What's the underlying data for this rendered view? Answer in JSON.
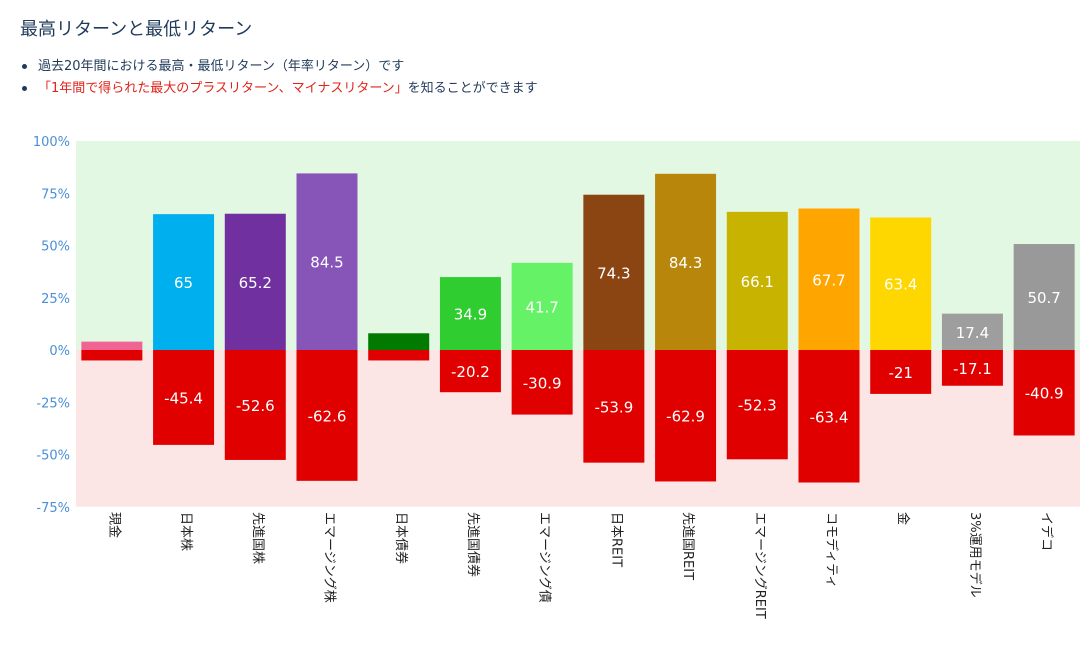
{
  "header": {
    "title": "最高リターンと最低リターン",
    "bullet1": "過去20年間における最高・最低リターン（年率リターン）です",
    "bullet2_red": "「1年間で得られた最大のプラスリターン、マイナスリターン」",
    "bullet2_rest": "を知ることができます"
  },
  "colors": {
    "positive_band": "#e3f8e3",
    "negative_band": "#fbe5e5",
    "negative_bar": "#e00000",
    "tick_label": "#4a8fd8"
  },
  "chart_data": {
    "type": "bar",
    "categories": [
      "現金",
      "日本株",
      "先進国株",
      "エマージング株",
      "日本債券",
      "先進国債券",
      "エマージング債",
      "日本REIT",
      "先進国REIT",
      "エマージングREIT",
      "コモディティ",
      "金",
      "3%運用モデル",
      "イデコ"
    ],
    "series": [
      {
        "values": [
          4,
          65,
          65.2,
          84.5,
          8,
          34.9,
          41.7,
          74.3,
          84.3,
          66.1,
          67.7,
          63.4,
          17.4,
          50.7
        ],
        "labels": [
          "",
          "65",
          "65.2",
          "84.5",
          "",
          "34.9",
          "41.7",
          "74.3",
          "84.3",
          "66.1",
          "67.7",
          "63.4",
          "17.4",
          "50.7"
        ],
        "colors": [
          "#f06493",
          "#00b0ee",
          "#7030a0",
          "#8755b8",
          "#007a00",
          "#2fcd2f",
          "#66f266",
          "#8b4513",
          "#b8860b",
          "#c8b400",
          "#ffa500",
          "#ffd700",
          "#9e9e9e",
          "#999999"
        ]
      },
      {
        "values": [
          -5,
          -45.4,
          -52.6,
          -62.6,
          -5,
          -20.2,
          -30.9,
          -53.9,
          -62.9,
          -52.3,
          -63.4,
          -21,
          -17.1,
          -40.9
        ],
        "labels": [
          "",
          "-45.4",
          "-52.6",
          "-62.6",
          "",
          "-20.2",
          "-30.9",
          "-53.9",
          "-62.9",
          "-52.3",
          "-63.4",
          "-21",
          "-17.1",
          "-40.9"
        ],
        "colors": [
          "#e00000",
          "#e00000",
          "#e00000",
          "#e00000",
          "#e00000",
          "#e00000",
          "#e00000",
          "#e00000",
          "#e00000",
          "#e00000",
          "#e00000",
          "#e00000",
          "#e00000",
          "#e00000"
        ]
      }
    ],
    "yticks": [
      "100%",
      "75%",
      "50%",
      "25%",
      "0%",
      "-25%",
      "-50%",
      "-75%"
    ],
    "ylim": [
      -75,
      100
    ],
    "grid": false
  }
}
